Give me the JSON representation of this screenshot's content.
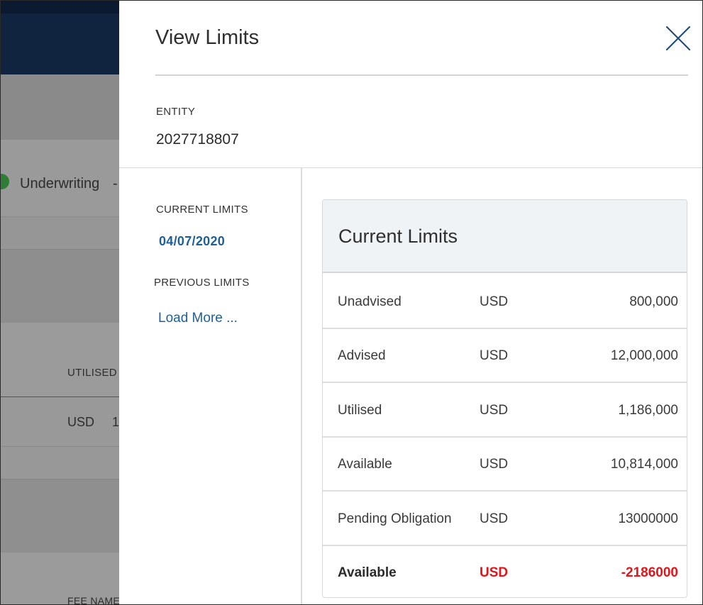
{
  "background": {
    "step_label": "Underwriting",
    "step_suffix": "-",
    "utilised_header": "UTILISED",
    "usd_label": "USD",
    "usd_value_fragment": "1",
    "fee_header": "FEE NAME"
  },
  "drawer": {
    "title": "View Limits",
    "entity_label": "ENTITY",
    "entity_value": "2027718807"
  },
  "nav": {
    "current_heading": "CURRENT LIMITS",
    "current_date": "04/07/2020",
    "previous_heading": "PREVIOUS LIMITS",
    "load_more": "Load More ..."
  },
  "limits": {
    "title": "Current Limits",
    "rows": [
      {
        "label": "Unadvised",
        "currency": "USD",
        "amount": "800,000"
      },
      {
        "label": "Advised",
        "currency": "USD",
        "amount": "12,000,000"
      },
      {
        "label": "Utilised",
        "currency": "USD",
        "amount": "1,186,000"
      },
      {
        "label": "Available",
        "currency": "USD",
        "amount": "10,814,000"
      },
      {
        "label": "Pending Obligation",
        "currency": "USD",
        "amount": "13000000"
      },
      {
        "label": "Available",
        "currency": "USD",
        "amount": "-2186000"
      }
    ]
  },
  "colors": {
    "accent_link": "#1f5f98",
    "negative": "#e0161b",
    "header_navy": "#10233f"
  }
}
